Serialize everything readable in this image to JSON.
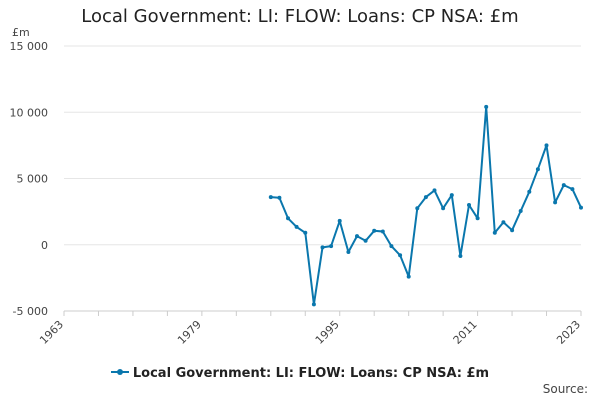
{
  "title": "Local Government: LI: FLOW: Loans: CP NSA: £m",
  "unit_label": "£m",
  "source_label": "Source:",
  "colors": {
    "series": "#0a77ad",
    "grid": "#e6e6e6",
    "axis": "#cccccc"
  },
  "chart_data": {
    "type": "line",
    "title": "Local Government: LI: FLOW: Loans: CP NSA: £m",
    "xlabel": "",
    "ylabel": "£m",
    "xlim": [
      1963,
      2023
    ],
    "ylim": [
      -5000,
      15000
    ],
    "x_ticks": [
      "1963",
      "1979",
      "1995",
      "2011",
      "2023"
    ],
    "y_ticks": [
      -5000,
      0,
      5000,
      10000,
      15000
    ],
    "y_tick_labels": [
      "-5 000",
      "0",
      "5 000",
      "10 000",
      "15 000"
    ],
    "grid": true,
    "legend_position": "bottom",
    "series": [
      {
        "name": "Local Government: LI: FLOW: Loans: CP NSA: £m",
        "x": [
          1987,
          1988,
          1989,
          1990,
          1991,
          1992,
          1993,
          1994,
          1995,
          1996,
          1997,
          1998,
          1999,
          2000,
          2001,
          2002,
          2003,
          2004,
          2005,
          2006,
          2007,
          2008,
          2009,
          2010,
          2011,
          2012,
          2013,
          2014,
          2015,
          2016,
          2017,
          2018,
          2019,
          2020,
          2021,
          2022,
          2023
        ],
        "values": [
          3600,
          3550,
          2000,
          1350,
          900,
          -4500,
          -200,
          -100,
          1800,
          -550,
          650,
          300,
          1050,
          1000,
          -100,
          -800,
          -2400,
          2750,
          3600,
          4100,
          2750,
          3750,
          -850,
          3000,
          2000,
          10400,
          900,
          1700,
          1100,
          2550,
          4000,
          5700,
          7500,
          3200,
          4500,
          4200,
          2800
        ]
      }
    ]
  }
}
